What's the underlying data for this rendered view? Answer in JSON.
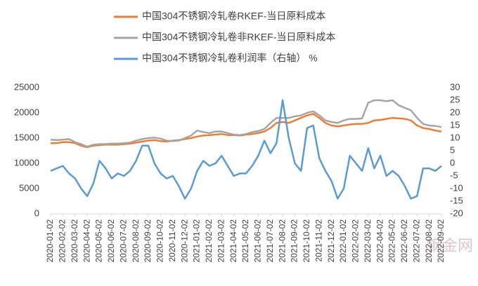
{
  "chart_data": {
    "type": "line",
    "categories": [
      "2020-01-02",
      null,
      "2020-02-02",
      null,
      "2020-03-02",
      null,
      "2020-04-02",
      null,
      "2020-05-02",
      null,
      "2020-06-02",
      null,
      "2020-07-02",
      null,
      "2020-08-02",
      null,
      "2020-09-02",
      null,
      "2020-10-02",
      null,
      "2020-11-02",
      null,
      "2020-12-02",
      null,
      "2021-01-02",
      null,
      "2021-02-02",
      null,
      "2021-03-02",
      null,
      "2021-04-02",
      null,
      "2021-05-02",
      null,
      "2021-06-02",
      null,
      "2021-07-02",
      null,
      "2021-08-02",
      null,
      "2021-09-02",
      null,
      "2021-10-02",
      null,
      "2021-11-02",
      null,
      "2021-12-02",
      null,
      "2022-01-02",
      null,
      "2022-02-02",
      null,
      "2022-03-02",
      null,
      "2022-04-02",
      null,
      "2022-05-02",
      null,
      "2022-06-02",
      null,
      "2022-07-02",
      null,
      "2022-08-02",
      null,
      "2022-09-02"
    ],
    "series": [
      {
        "name": "中国304不锈钢冷轧卷RKEF-当日原料成本",
        "color": "#ed7d31",
        "values": [
          14000,
          14000,
          14200,
          14200,
          14000,
          13500,
          13200,
          13500,
          13600,
          13700,
          13700,
          13700,
          13800,
          13900,
          14100,
          14300,
          14500,
          14600,
          14400,
          14300,
          14500,
          14600,
          14800,
          15000,
          15300,
          15500,
          15600,
          15700,
          15800,
          15600,
          15600,
          15500,
          15700,
          15800,
          16000,
          16300,
          17000,
          18000,
          18200,
          18000,
          18500,
          19000,
          19500,
          19800,
          19000,
          18000,
          17500,
          17300,
          17500,
          17700,
          17800,
          17800,
          18000,
          18500,
          18600,
          18800,
          19000,
          18900,
          18800,
          18500,
          17500,
          17000,
          16800,
          16500,
          16300
        ]
      },
      {
        "name": "中国304不锈钢冷轧卷非RKEF-当日原料成本",
        "color": "#a5a5a5",
        "values": [
          14700,
          14600,
          14700,
          14800,
          14200,
          13800,
          13300,
          13700,
          13800,
          13800,
          13900,
          13900,
          14000,
          14100,
          14500,
          14800,
          15000,
          15100,
          14900,
          14500,
          14400,
          14500,
          15000,
          15500,
          16500,
          16200,
          16000,
          16300,
          16300,
          16000,
          15700,
          15600,
          15800,
          16200,
          16400,
          16800,
          18000,
          19000,
          19000,
          19000,
          19300,
          19500,
          20000,
          20300,
          19500,
          18500,
          18200,
          18000,
          18500,
          18800,
          18800,
          18900,
          22000,
          22500,
          22500,
          22300,
          22500,
          21500,
          21000,
          20500,
          19000,
          17800,
          17500,
          17400,
          17200
        ]
      },
      {
        "name": "中国304不锈钢冷轧卷利润率（右轴）  %",
        "color": "#5b9bd5",
        "axis": "y2",
        "values": [
          -3,
          -2,
          -1,
          -4,
          -6,
          -10,
          -13,
          -8,
          1,
          -2,
          -6,
          -4,
          -5,
          -3,
          1,
          7,
          7,
          0,
          -4,
          -6,
          -5,
          -9,
          -14,
          -10,
          -3,
          1,
          -1,
          0,
          3,
          -1,
          -5,
          -4,
          -4,
          -1,
          3,
          9,
          4,
          8,
          25,
          10,
          0,
          -3,
          14,
          15,
          2,
          -3,
          -7,
          -14,
          -10,
          3,
          0,
          -3,
          6,
          -2,
          3,
          -5,
          -3,
          -5,
          -9,
          -14,
          -13,
          -2,
          -2,
          -3,
          -1
        ]
      }
    ],
    "ylim": [
      0,
      25000
    ],
    "yticks": [
      0,
      5000,
      10000,
      15000,
      20000,
      25000
    ],
    "y2lim": [
      -20,
      30
    ],
    "y2ticks": [
      -20,
      -15,
      -10,
      -5,
      0,
      5,
      10,
      15,
      20,
      25,
      30
    ],
    "annotations": [
      "钢金网"
    ]
  }
}
